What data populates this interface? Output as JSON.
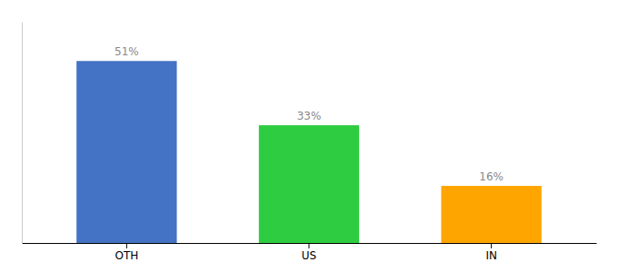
{
  "chart_data": {
    "type": "bar",
    "categories": [
      "OTH",
      "US",
      "IN"
    ],
    "values": [
      51,
      33,
      16
    ],
    "value_labels": [
      "51%",
      "33%",
      "16%"
    ],
    "colors": [
      "#4472C4",
      "#2ECC40",
      "#FFA500"
    ],
    "ylim": [
      0,
      62
    ],
    "data_labels": true,
    "tick_labels": "x",
    "grid": false
  }
}
